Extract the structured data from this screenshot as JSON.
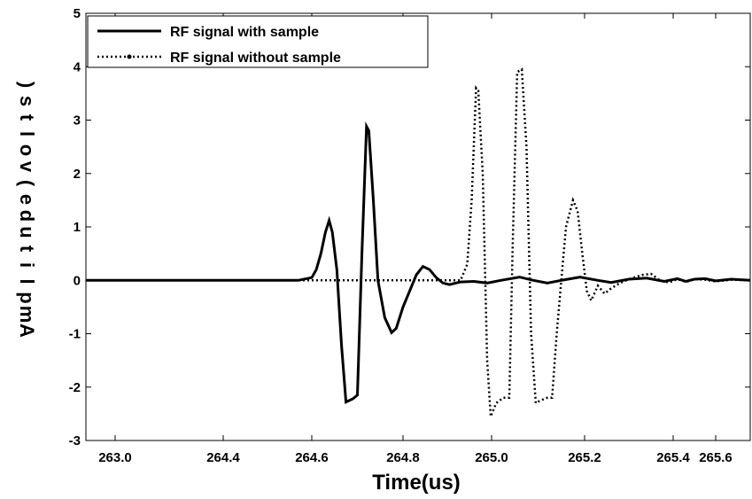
{
  "chart_data": {
    "type": "line",
    "xlabel": "Time(us)",
    "ylabel": "Amplitude(volts)",
    "ylim": [
      -3,
      5
    ],
    "grid": false,
    "legend_position": "top-left",
    "x_tick_labels": [
      "263.0",
      "264.4",
      "264.6",
      "264.8",
      "265.0",
      "265.2",
      "265.4",
      "265.6"
    ],
    "y_tick_labels": [
      "-3",
      "-2",
      "-1",
      "0",
      "1",
      "2",
      "3",
      "4",
      "5"
    ],
    "y_ticks": [
      -3,
      -2,
      -1,
      0,
      1,
      2,
      3,
      4,
      5
    ],
    "series": [
      {
        "name": "RF signal with sample",
        "style": "solid",
        "color": "#000000",
        "points": [
          [
            264.1,
            0
          ],
          [
            264.585,
            0
          ],
          [
            264.6,
            0.05
          ],
          [
            264.61,
            0.2
          ],
          [
            264.62,
            0.5
          ],
          [
            264.63,
            0.9
          ],
          [
            264.638,
            1.12
          ],
          [
            264.645,
            0.9
          ],
          [
            264.655,
            0.2
          ],
          [
            264.665,
            -1.2
          ],
          [
            264.675,
            -2.28
          ],
          [
            264.69,
            -2.22
          ],
          [
            264.7,
            -2.15
          ],
          [
            264.71,
            0.5
          ],
          [
            264.72,
            2.88
          ],
          [
            264.725,
            2.8
          ],
          [
            264.735,
            1.5
          ],
          [
            264.745,
            0.0
          ],
          [
            264.76,
            -0.7
          ],
          [
            264.775,
            -0.98
          ],
          [
            264.785,
            -0.9
          ],
          [
            264.8,
            -0.5
          ],
          [
            264.815,
            -0.2
          ],
          [
            264.83,
            0.1
          ],
          [
            264.845,
            0.26
          ],
          [
            264.86,
            0.2
          ],
          [
            264.875,
            0.05
          ],
          [
            264.89,
            -0.05
          ],
          [
            264.905,
            -0.08
          ],
          [
            264.93,
            -0.03
          ],
          [
            264.96,
            -0.02
          ],
          [
            264.99,
            -0.05
          ],
          [
            265.02,
            0.0
          ],
          [
            265.06,
            0.06
          ],
          [
            265.09,
            0.0
          ],
          [
            265.12,
            -0.05
          ],
          [
            265.15,
            0.0
          ],
          [
            265.19,
            0.06
          ],
          [
            265.23,
            0.0
          ],
          [
            265.26,
            -0.04
          ],
          [
            265.3,
            0.02
          ],
          [
            265.34,
            0.04
          ],
          [
            265.38,
            -0.02
          ],
          [
            265.42,
            0.03
          ],
          [
            265.46,
            -0.02
          ],
          [
            265.5,
            0.02
          ],
          [
            265.55,
            0.03
          ],
          [
            265.6,
            -0.01
          ],
          [
            265.65,
            0.02
          ],
          [
            265.71,
            0
          ]
        ]
      },
      {
        "name": "RF signal without sample",
        "style": "dotted",
        "color": "#000000",
        "points": [
          [
            264.1,
            0
          ],
          [
            264.93,
            0
          ],
          [
            264.945,
            0.3
          ],
          [
            264.955,
            1.5
          ],
          [
            264.965,
            3.6
          ],
          [
            264.97,
            3.55
          ],
          [
            264.98,
            2.0
          ],
          [
            264.99,
            -1.5
          ],
          [
            264.998,
            -2.55
          ],
          [
            265.01,
            -2.3
          ],
          [
            265.025,
            -2.2
          ],
          [
            265.038,
            -2.2
          ],
          [
            265.045,
            0.5
          ],
          [
            265.055,
            3.9
          ],
          [
            265.065,
            3.95
          ],
          [
            265.075,
            2.5
          ],
          [
            265.085,
            -1.0
          ],
          [
            265.095,
            -2.3
          ],
          [
            265.105,
            -2.25
          ],
          [
            265.12,
            -2.2
          ],
          [
            265.13,
            -2.2
          ],
          [
            265.14,
            -1.0
          ],
          [
            265.15,
            0.0
          ],
          [
            265.16,
            1.0
          ],
          [
            265.175,
            1.5
          ],
          [
            265.185,
            1.3
          ],
          [
            265.195,
            0.5
          ],
          [
            265.205,
            -0.2
          ],
          [
            265.215,
            -0.38
          ],
          [
            265.23,
            -0.1
          ],
          [
            265.245,
            -0.25
          ],
          [
            265.26,
            -0.15
          ],
          [
            265.28,
            -0.05
          ],
          [
            265.3,
            0.02
          ],
          [
            265.33,
            0.1
          ],
          [
            265.35,
            0.12
          ],
          [
            265.37,
            0.0
          ],
          [
            265.39,
            -0.04
          ],
          [
            265.42,
            0.02
          ],
          [
            265.46,
            -0.03
          ],
          [
            265.5,
            0.02
          ],
          [
            265.55,
            0.01
          ],
          [
            265.6,
            -0.02
          ],
          [
            265.65,
            0.01
          ],
          [
            265.71,
            0
          ]
        ]
      }
    ]
  }
}
